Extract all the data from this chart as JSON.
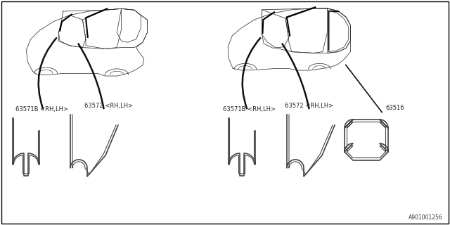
{
  "bg_color": "#ffffff",
  "border_color": "#000000",
  "part_number": "A901001256",
  "labels": {
    "left_63571B": "63571B <RH,LH>",
    "left_63572": "63572 <RH,LH>",
    "right_63571B": "63571B <RH,LH>",
    "right_63572": "63572 <RH,LH>",
    "right_63516": "63516"
  },
  "fig_width": 6.4,
  "fig_height": 3.2,
  "dpi": 100,
  "line_color": "#333333",
  "label_color": "#222222",
  "leader_color": "#111111"
}
